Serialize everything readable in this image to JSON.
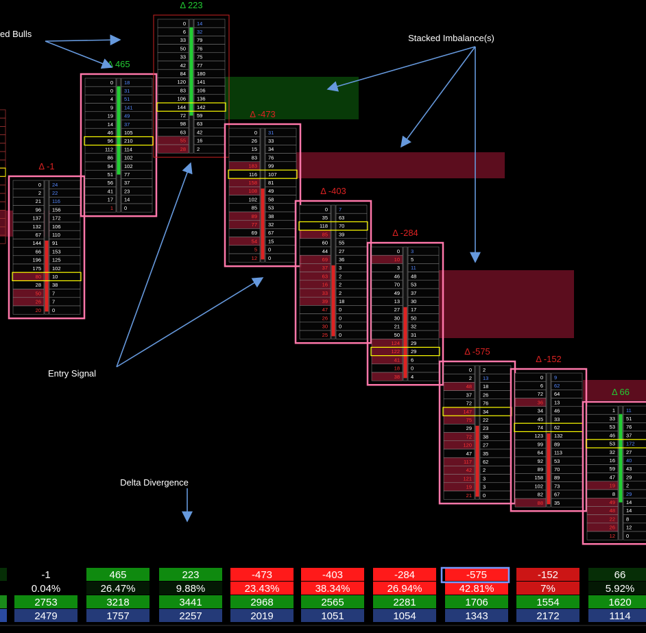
{
  "chart_data": {
    "type": "footprint",
    "colors": {
      "positive": "#22cc33",
      "negative": "#dd2222",
      "bull_border": "#ff77aa",
      "poc_border": "#ffff00",
      "arrow": "#6699dd",
      "buy_imbalance": "#5588ff",
      "sell_imbalance": "#ff3333",
      "zone_green": "#083a08",
      "zone_red": "#5c0d1e"
    },
    "annotations": [
      {
        "id": "stacked-bulls",
        "text": "ed Bulls"
      },
      {
        "id": "stacked-imbalances",
        "text": "Stacked Imbalance(s)"
      },
      {
        "id": "entry-signal",
        "text": "Entry Signal"
      },
      {
        "id": "delta-divergence",
        "text": "Delta Divergence"
      }
    ],
    "bars": [
      {
        "delta": "Δ -1",
        "dir": "neg",
        "poc": 11,
        "rows": [
          [
            0,
            24
          ],
          [
            2,
            22
          ],
          [
            21,
            116
          ],
          [
            96,
            156
          ],
          [
            137,
            172
          ],
          [
            132,
            106
          ],
          [
            67,
            110
          ],
          [
            144,
            91
          ],
          [
            66,
            153
          ],
          [
            196,
            125
          ],
          [
            175,
            102
          ],
          [
            80,
            10
          ],
          [
            28,
            38
          ],
          [
            50,
            7
          ],
          [
            26,
            7
          ],
          [
            20,
            0
          ]
        ]
      },
      {
        "delta": "Δ 465",
        "dir": "pos",
        "poc": 7,
        "rows": [
          [
            0,
            18
          ],
          [
            0,
            31
          ],
          [
            4,
            51
          ],
          [
            9,
            141
          ],
          [
            19,
            49
          ],
          [
            14,
            37
          ],
          [
            46,
            105
          ],
          [
            96,
            210
          ],
          [
            112,
            114
          ],
          [
            86,
            102
          ],
          [
            94,
            102
          ],
          [
            51,
            77
          ],
          [
            56,
            37
          ],
          [
            41,
            23
          ],
          [
            17,
            14
          ],
          [
            1,
            0
          ]
        ]
      },
      {
        "delta": "Δ 223",
        "dir": "pos",
        "poc": 10,
        "rows": [
          [
            0,
            14
          ],
          [
            6,
            32
          ],
          [
            33,
            79
          ],
          [
            50,
            76
          ],
          [
            33,
            75
          ],
          [
            42,
            77
          ],
          [
            84,
            180
          ],
          [
            120,
            141
          ],
          [
            83,
            106
          ],
          [
            106,
            136
          ],
          [
            144,
            142
          ],
          [
            72,
            59
          ],
          [
            98,
            63
          ],
          [
            63,
            42
          ],
          [
            55,
            16
          ],
          [
            28,
            2
          ]
        ]
      },
      {
        "delta": "Δ -473",
        "dir": "neg",
        "poc": 5,
        "rows": [
          [
            0,
            31
          ],
          [
            26,
            33
          ],
          [
            15,
            34
          ],
          [
            83,
            76
          ],
          [
            183,
            99
          ],
          [
            116,
            107
          ],
          [
            158,
            81
          ],
          [
            108,
            49
          ],
          [
            102,
            58
          ],
          [
            85,
            53
          ],
          [
            89,
            38
          ],
          [
            77,
            32
          ],
          [
            69,
            67
          ],
          [
            54,
            15
          ],
          [
            5,
            0
          ],
          [
            12,
            0
          ]
        ]
      },
      {
        "delta": "Δ -403",
        "dir": "neg",
        "poc": 2,
        "rows": [
          [
            0,
            7
          ],
          [
            35,
            63
          ],
          [
            118,
            70
          ],
          [
            85,
            39
          ],
          [
            60,
            55
          ],
          [
            44,
            27
          ],
          [
            69,
            36
          ],
          [
            37,
            3
          ],
          [
            63,
            2
          ],
          [
            16,
            2
          ],
          [
            33,
            2
          ],
          [
            39,
            18
          ],
          [
            47,
            0
          ],
          [
            26,
            0
          ],
          [
            30,
            0
          ],
          [
            25,
            0
          ]
        ]
      },
      {
        "delta": "Δ -284",
        "dir": "neg",
        "poc": 12,
        "rows": [
          [
            0,
            3
          ],
          [
            10,
            5
          ],
          [
            3,
            11
          ],
          [
            46,
            48
          ],
          [
            70,
            53
          ],
          [
            49,
            37
          ],
          [
            13,
            30
          ],
          [
            27,
            17
          ],
          [
            30,
            50
          ],
          [
            21,
            32
          ],
          [
            50,
            31
          ],
          [
            124,
            29
          ],
          [
            122,
            29
          ],
          [
            41,
            6
          ],
          [
            18,
            0
          ],
          [
            38,
            4
          ]
        ]
      },
      {
        "delta": "Δ -575",
        "dir": "neg",
        "poc": 5,
        "rows": [
          [
            0,
            2
          ],
          [
            2,
            13
          ],
          [
            48,
            18
          ],
          [
            37,
            26
          ],
          [
            72,
            76
          ],
          [
            147,
            34
          ],
          [
            75,
            22
          ],
          [
            29,
            23
          ],
          [
            72,
            38
          ],
          [
            120,
            27
          ],
          [
            47,
            35
          ],
          [
            117,
            62
          ],
          [
            42,
            2
          ],
          [
            121,
            3
          ],
          [
            19,
            3
          ],
          [
            21,
            0
          ]
        ]
      },
      {
        "delta": "Δ -152",
        "dir": "neg",
        "poc": 6,
        "rows": [
          [
            0,
            9
          ],
          [
            6,
            62
          ],
          [
            72,
            64
          ],
          [
            36,
            13
          ],
          [
            34,
            46
          ],
          [
            45,
            33
          ],
          [
            74,
            62
          ],
          [
            123,
            132
          ],
          [
            99,
            89
          ],
          [
            64,
            113
          ],
          [
            92,
            53
          ],
          [
            89,
            70
          ],
          [
            158,
            89
          ],
          [
            102,
            73
          ],
          [
            82,
            67
          ],
          [
            88,
            35
          ]
        ]
      },
      {
        "delta": "Δ 66",
        "dir": "pos",
        "poc": 4,
        "rows": [
          [
            1,
            11
          ],
          [
            33,
            51
          ],
          [
            53,
            76
          ],
          [
            46,
            37
          ],
          [
            53,
            172
          ],
          [
            32,
            27
          ],
          [
            16,
            40
          ],
          [
            59,
            43
          ],
          [
            47,
            29
          ],
          [
            19,
            2
          ],
          [
            8,
            29
          ],
          [
            49,
            14
          ],
          [
            48,
            14
          ],
          [
            22,
            8
          ],
          [
            26,
            12
          ],
          [
            12,
            0
          ]
        ]
      }
    ],
    "summary": {
      "delta": [
        "-1",
        "465",
        "223",
        "-473",
        "-403",
        "-284",
        "-575",
        "-152",
        "66"
      ],
      "percent": [
        "0.04%",
        "26.47%",
        "9.88%",
        "23.43%",
        "38.34%",
        "26.94%",
        "42.81%",
        "7%",
        "5.92%"
      ],
      "volume": [
        "2753",
        "3218",
        "3441",
        "2968",
        "2565",
        "2281",
        "1706",
        "1554",
        "1620"
      ],
      "trades": [
        "2479",
        "1757",
        "2257",
        "2019",
        "1051",
        "1054",
        "1343",
        "2172",
        "1114"
      ]
    }
  }
}
